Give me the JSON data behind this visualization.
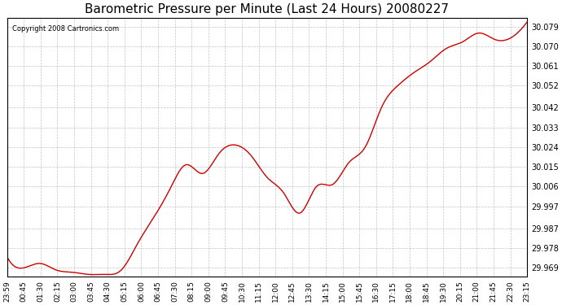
{
  "title": "Barometric Pressure per Minute (Last 24 Hours) 20080227",
  "copyright": "Copyright 2008 Cartronics.com",
  "line_color": "#cc0000",
  "background_color": "#ffffff",
  "plot_bg_color": "#ffffff",
  "grid_color": "#aaaaaa",
  "yticks": [
    29.969,
    29.978,
    29.987,
    29.997,
    30.006,
    30.015,
    30.024,
    30.033,
    30.042,
    30.052,
    30.061,
    30.07,
    30.079
  ],
  "ylim": [
    29.965,
    30.083
  ],
  "xtick_labels": [
    "23:59",
    "00:45",
    "01:30",
    "02:15",
    "03:00",
    "03:45",
    "04:30",
    "05:15",
    "06:00",
    "06:45",
    "07:30",
    "08:15",
    "09:00",
    "09:45",
    "10:30",
    "11:15",
    "12:00",
    "12:45",
    "13:30",
    "14:15",
    "15:00",
    "15:45",
    "16:30",
    "17:15",
    "18:00",
    "18:45",
    "19:30",
    "20:15",
    "21:00",
    "21:45",
    "22:30",
    "23:15"
  ],
  "keypoints_x": [
    0,
    46,
    91,
    136,
    181,
    226,
    271,
    316,
    361,
    406,
    451,
    496,
    541,
    586,
    631,
    676,
    721,
    766,
    811,
    856,
    901,
    946,
    991,
    1036,
    1081,
    1126,
    1171,
    1216,
    1261,
    1306,
    1351,
    1396,
    1439
  ],
  "keypoints_y": [
    29.974,
    29.969,
    29.971,
    29.968,
    29.967,
    29.966,
    29.966,
    29.968,
    29.98,
    29.992,
    30.005,
    30.016,
    30.012,
    30.021,
    30.025,
    30.02,
    30.01,
    30.003,
    29.994,
    30.006,
    30.007,
    30.017,
    30.024,
    30.042,
    30.052,
    30.058,
    30.063,
    30.069,
    30.072,
    30.076,
    30.073,
    30.074,
    30.081
  ]
}
